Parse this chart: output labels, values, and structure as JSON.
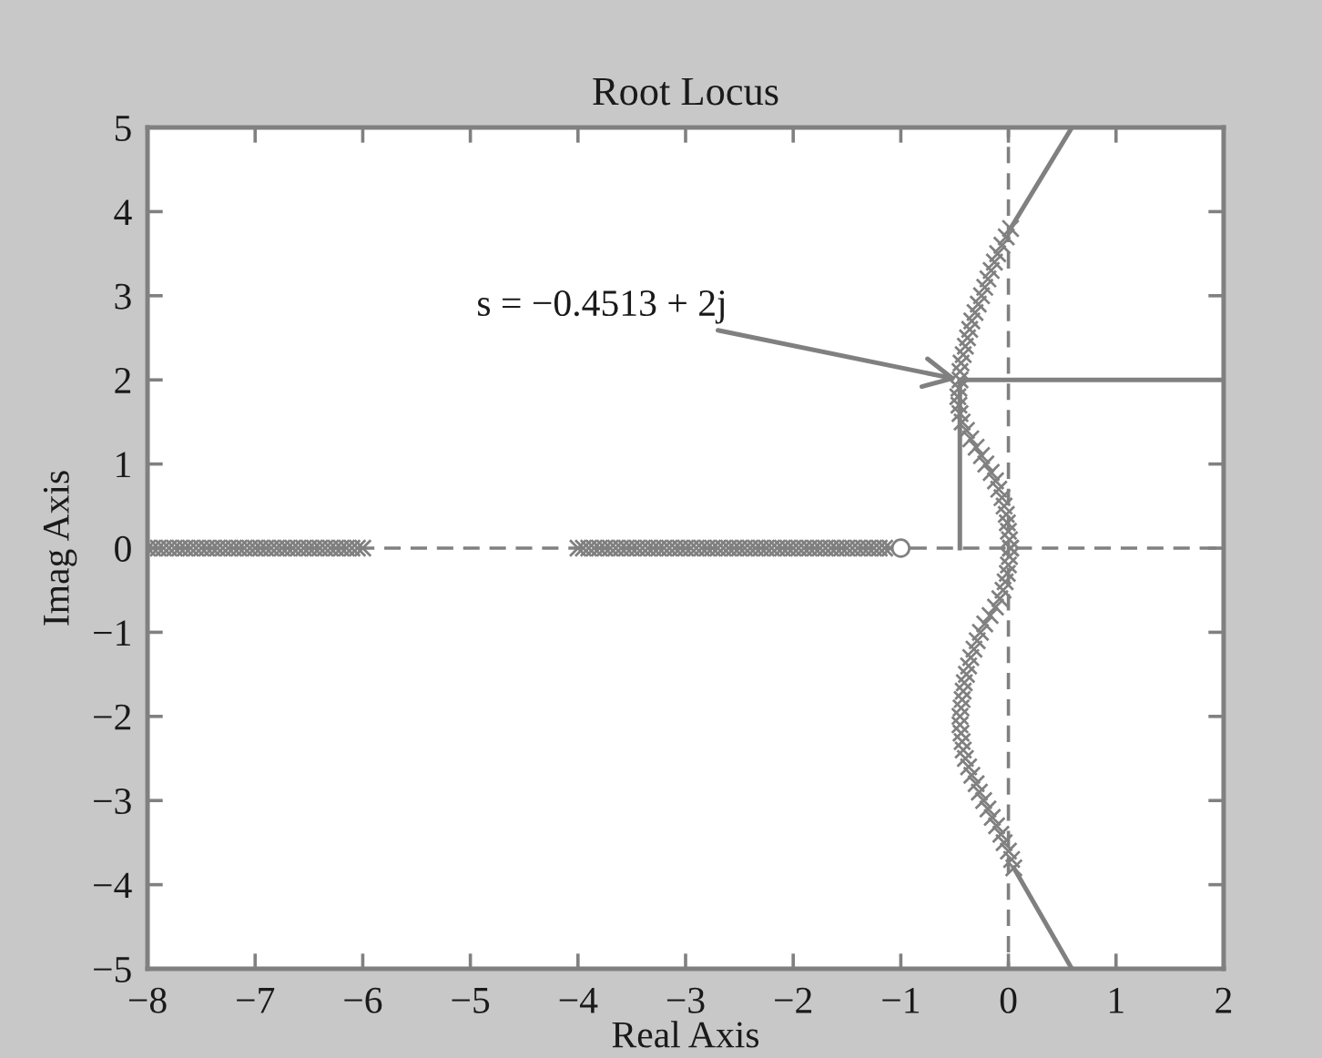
{
  "chart_data": {
    "type": "scatter",
    "title": "Root Locus",
    "xlabel": "Real Axis",
    "ylabel": "Imag Axis",
    "xlim": [
      -8,
      2
    ],
    "ylim": [
      -5,
      5
    ],
    "xticks": [
      {
        "value": -8,
        "label": "−8"
      },
      {
        "value": -7,
        "label": "−7"
      },
      {
        "value": -6,
        "label": "−6"
      },
      {
        "value": -5,
        "label": "−5"
      },
      {
        "value": -4,
        "label": "−4"
      },
      {
        "value": -3,
        "label": "−3"
      },
      {
        "value": -2,
        "label": "−2"
      },
      {
        "value": -1,
        "label": "−1"
      },
      0,
      1,
      2
    ],
    "yticks": [
      {
        "value": -5,
        "label": "−5"
      },
      {
        "value": -4,
        "label": "−4"
      },
      {
        "value": -3,
        "label": "−3"
      },
      {
        "value": -2,
        "label": "−2"
      },
      {
        "value": -1,
        "label": "−1"
      },
      0,
      1,
      2,
      3,
      4,
      5
    ],
    "ref_lines": [
      {
        "axis": "y",
        "value": 0,
        "color": "#808080",
        "line_style": "dashed"
      },
      {
        "axis": "x",
        "value": 0,
        "color": "#808080",
        "line_style": "dashed"
      }
    ],
    "annotations": [
      {
        "text": "s = −0.4513 + 2j",
        "x": -0.4513,
        "y": 2
      }
    ],
    "series": [
      {
        "type": "line",
        "marker": "none",
        "line_style": "solid",
        "color": "#808080",
        "x": [
          -0.4513,
          -0.4513
        ],
        "values": [
          0,
          2
        ]
      },
      {
        "type": "line",
        "marker": "none",
        "line_style": "solid",
        "color": "#808080",
        "x": [
          -0.4513,
          2
        ],
        "values": [
          2,
          2
        ]
      },
      {
        "type": "line",
        "marker": "none",
        "line_style": "solid",
        "color": "#808080",
        "x": [
          0.02,
          0.59
        ],
        "values": [
          3.8,
          5
        ]
      },
      {
        "type": "line",
        "marker": "none",
        "line_style": "solid",
        "color": "#808080",
        "x": [
          0.05,
          0.59
        ],
        "values": [
          -3.8,
          -5
        ]
      },
      {
        "marker": "cross",
        "color": "#808080",
        "x": [
          -8,
          -7.95,
          -7.9,
          -7.85,
          -7.8,
          -7.75,
          -7.7,
          -7.65,
          -7.6,
          -7.55,
          -7.5,
          -7.45,
          -7.4,
          -7.35,
          -7.3,
          -7.25,
          -7.2,
          -7.15,
          -7.1,
          -7.05,
          -7,
          -6.95,
          -6.9,
          -6.85,
          -6.8,
          -6.75,
          -6.7,
          -6.65,
          -6.6,
          -6.55,
          -6.5,
          -6.45,
          -6.4,
          -6.35,
          -6.3,
          -6.25,
          -6.2,
          -6.15,
          -6.1,
          -6.05,
          -6
        ],
        "values": [
          0,
          0,
          0,
          0,
          0,
          0,
          0,
          0,
          0,
          0,
          0,
          0,
          0,
          0,
          0,
          0,
          0,
          0,
          0,
          0,
          0,
          0,
          0,
          0,
          0,
          0,
          0,
          0,
          0,
          0,
          0,
          0,
          0,
          0,
          0,
          0,
          0,
          0,
          0,
          0,
          0
        ]
      },
      {
        "marker": "cross",
        "color": "#808080",
        "x": [
          -4,
          -3.95,
          -3.9,
          -3.85,
          -3.8,
          -3.75,
          -3.7,
          -3.65,
          -3.6,
          -3.55,
          -3.5,
          -3.45,
          -3.4,
          -3.35,
          -3.3,
          -3.25,
          -3.2,
          -3.15,
          -3.1,
          -3.05,
          -3,
          -2.95,
          -2.9,
          -2.85,
          -2.8,
          -2.75,
          -2.7,
          -2.65,
          -2.6,
          -2.55,
          -2.5,
          -2.45,
          -2.4,
          -2.35,
          -2.3,
          -2.25,
          -2.2,
          -2.15,
          -2.1,
          -2.05,
          -2,
          -1.95,
          -1.9,
          -1.85,
          -1.8,
          -1.75,
          -1.7,
          -1.65,
          -1.6,
          -1.55,
          -1.5,
          -1.45,
          -1.4,
          -1.35,
          -1.3,
          -1.25,
          -1.2,
          -1.15,
          -1.1
        ],
        "values": [
          0,
          0,
          0,
          0,
          0,
          0,
          0,
          0,
          0,
          0,
          0,
          0,
          0,
          0,
          0,
          0,
          0,
          0,
          0,
          0,
          0,
          0,
          0,
          0,
          0,
          0,
          0,
          0,
          0,
          0,
          0,
          0,
          0,
          0,
          0,
          0,
          0,
          0,
          0,
          0,
          0,
          0,
          0,
          0,
          0,
          0,
          0,
          0,
          0,
          0,
          0,
          0,
          0,
          0,
          0,
          0,
          0,
          0,
          0
        ]
      },
      {
        "marker": "circle",
        "color": "#808080",
        "x": [
          -1
        ],
        "values": [
          0
        ]
      },
      {
        "marker": "cross",
        "color": "#808080",
        "x": [
          0.02,
          0.01,
          0,
          -0.01,
          -0.02,
          -0.04,
          -0.06,
          -0.09,
          -0.12,
          -0.16,
          -0.21,
          -0.25,
          -0.3,
          -0.35,
          -0.39,
          -0.43,
          -0.45,
          -0.46,
          -0.47,
          -0.46,
          -0.45,
          -0.45,
          -0.44,
          -0.42,
          -0.4,
          -0.38,
          -0.36,
          -0.34,
          -0.31,
          -0.28,
          -0.25,
          -0.22,
          -0.19,
          -0.16,
          -0.13,
          -0.1,
          -0.06,
          -0.02,
          0.02
        ],
        "values": [
          0,
          0.1,
          0.2,
          0.3,
          0.4,
          0.5,
          0.6,
          0.7,
          0.8,
          0.9,
          1.0,
          1.1,
          1.2,
          1.3,
          1.4,
          1.5,
          1.6,
          1.7,
          1.8,
          1.9,
          2.0,
          2.1,
          2.2,
          2.3,
          2.4,
          2.5,
          2.6,
          2.7,
          2.8,
          2.9,
          3.0,
          3.1,
          3.2,
          3.3,
          3.4,
          3.5,
          3.6,
          3.7,
          3.8
        ]
      },
      {
        "marker": "cross",
        "color": "#808080",
        "x": [
          0.02,
          0.01,
          0,
          -0.01,
          -0.03,
          -0.05,
          -0.08,
          -0.12,
          -0.17,
          -0.22,
          -0.26,
          -0.29,
          -0.32,
          -0.35,
          -0.37,
          -0.39,
          -0.41,
          -0.42,
          -0.43,
          -0.44,
          -0.45,
          -0.45,
          -0.44,
          -0.43,
          -0.42,
          -0.4,
          -0.37,
          -0.34,
          -0.3,
          -0.27,
          -0.23,
          -0.19,
          -0.15,
          -0.11,
          -0.07,
          -0.04,
          0,
          0.03,
          0.05
        ],
        "values": [
          0,
          -0.1,
          -0.2,
          -0.3,
          -0.4,
          -0.5,
          -0.6,
          -0.7,
          -0.8,
          -0.9,
          -1.0,
          -1.1,
          -1.2,
          -1.3,
          -1.4,
          -1.5,
          -1.6,
          -1.7,
          -1.8,
          -1.9,
          -2.0,
          -2.1,
          -2.2,
          -2.3,
          -2.4,
          -2.5,
          -2.6,
          -2.7,
          -2.8,
          -2.9,
          -3.0,
          -3.1,
          -3.2,
          -3.3,
          -3.4,
          -3.5,
          -3.6,
          -3.7,
          -3.8
        ]
      }
    ]
  }
}
